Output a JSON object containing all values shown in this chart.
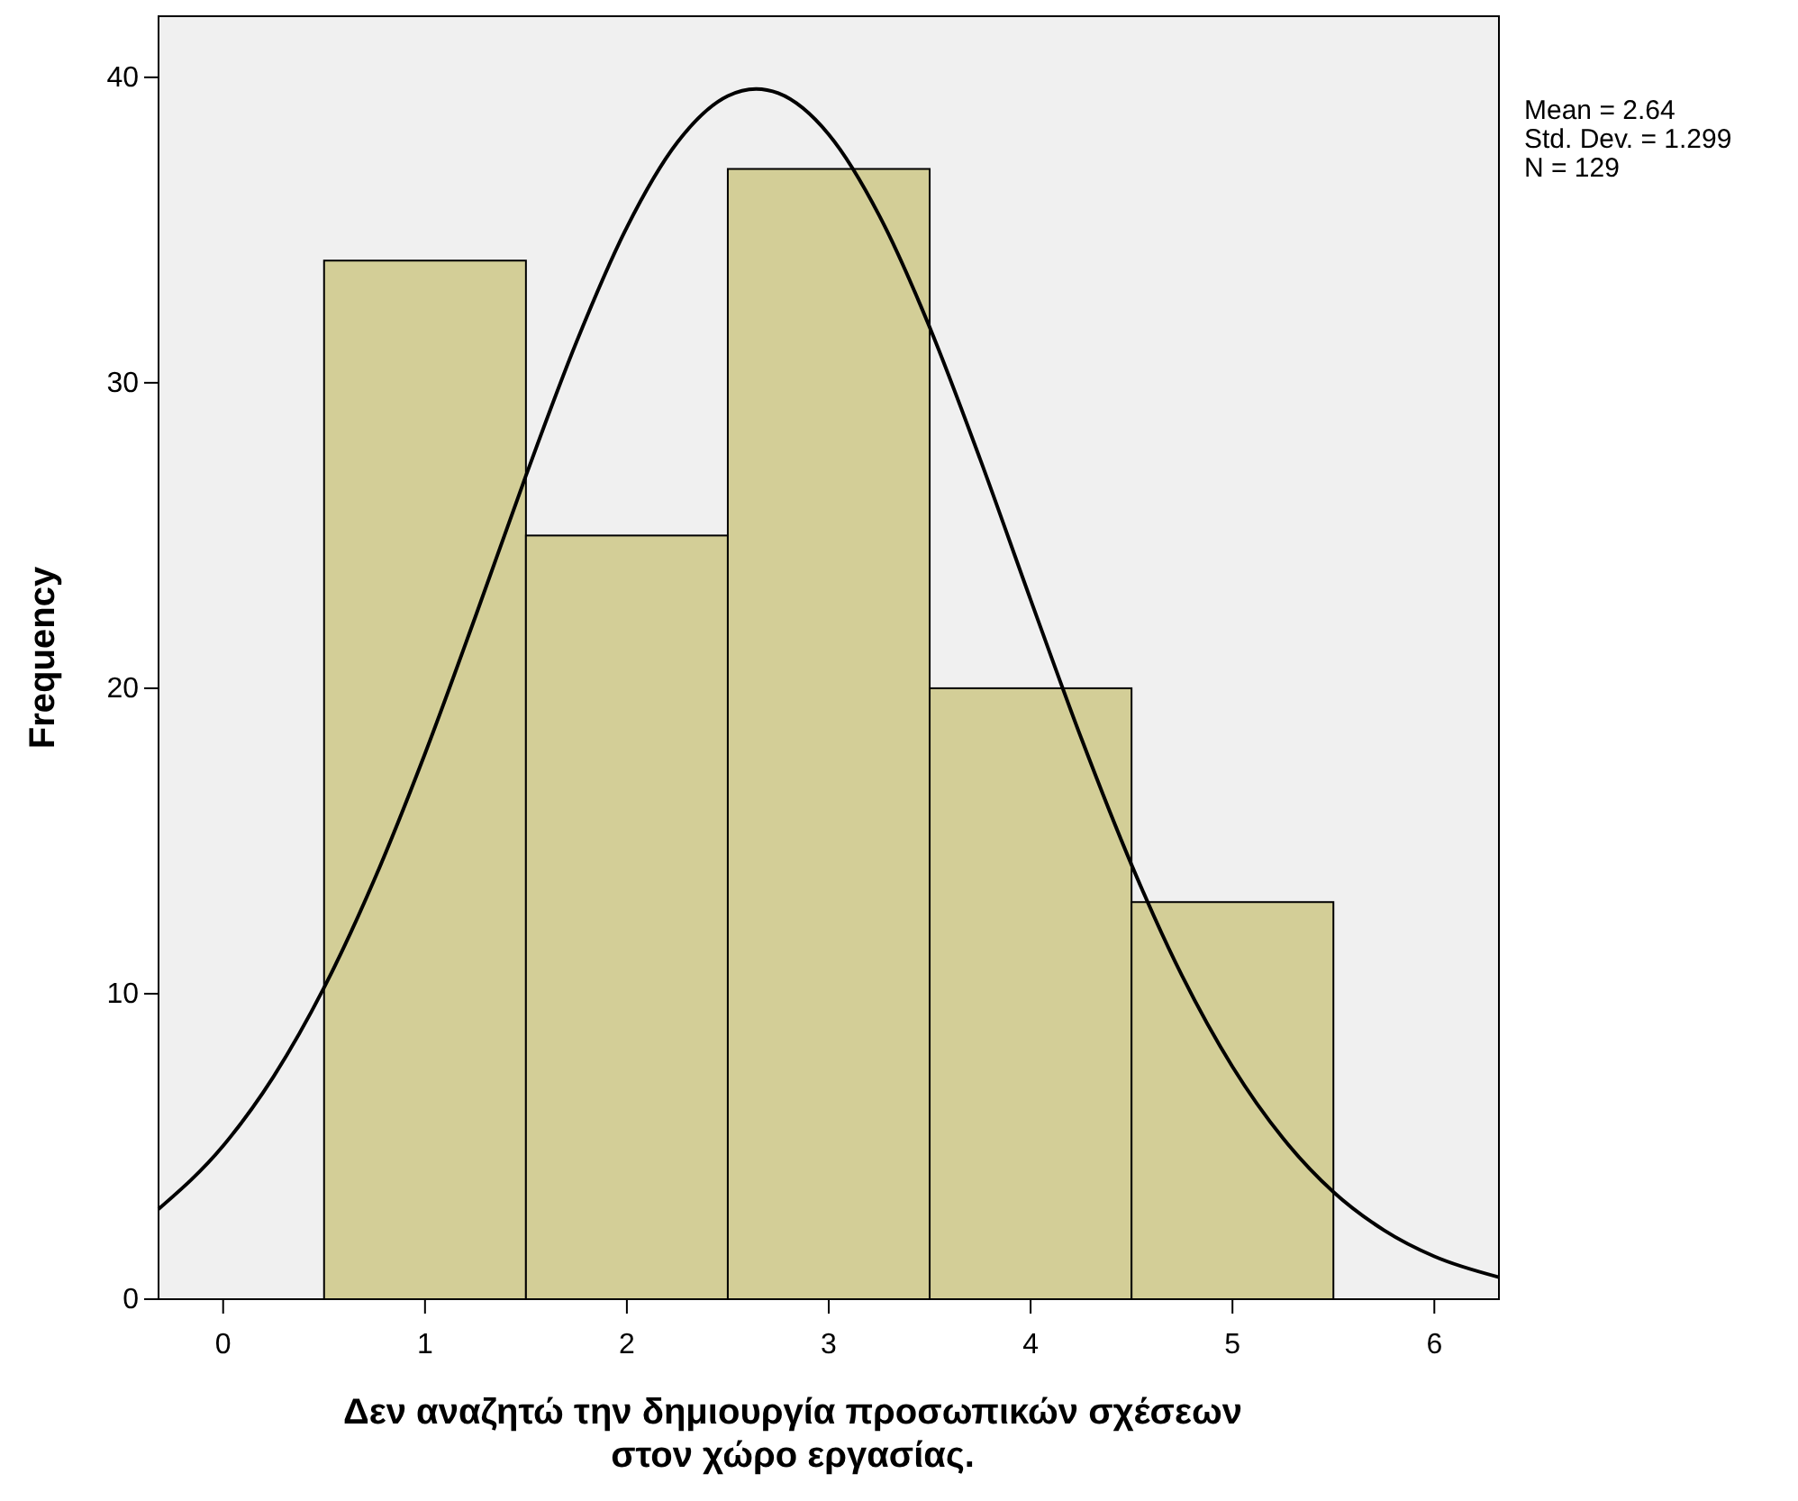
{
  "chart_data": {
    "type": "histogram",
    "xlabel": "Δεν αναζητώ την δημιουργία προσωπικών σχέσεων\nστον χώρο εργασίας.",
    "ylabel": "Frequency",
    "annotations": [
      "Mean = 2.64\nStd. Dev. = 1.299\nN = 129"
    ],
    "color": "#d3ce97",
    "bins": [
      0.5,
      1.5,
      2.5,
      3.5,
      4.5,
      5.5
    ],
    "values": [
      34,
      25,
      37,
      20,
      13
    ],
    "series": [
      {
        "type": "line",
        "color": "#000000",
        "x": [
          -0.32,
          0,
          0.25,
          0.5,
          0.75,
          1,
          1.25,
          1.5,
          1.75,
          2,
          2.25,
          2.5,
          2.64,
          2.75,
          3,
          3.25,
          3.5,
          3.75,
          4,
          4.25,
          4.5,
          4.75,
          5,
          5.25,
          5.5,
          5.75,
          6,
          6.32
        ],
        "values": [
          2.95,
          5.02,
          7.29,
          10.2,
          13.75,
          17.86,
          22.35,
          26.96,
          31.33,
          35.09,
          37.87,
          39.39,
          39.62,
          39.48,
          38.13,
          35.48,
          31.82,
          27.5,
          22.9,
          18.38,
          14.22,
          10.59,
          7.61,
          5.27,
          3.51,
          2.26,
          1.4,
          0.72
        ]
      }
    ],
    "xlim": [
      -0.32,
      6.32
    ],
    "xticks": [
      0,
      1,
      2,
      3,
      4,
      5,
      6
    ],
    "ylim": [
      0,
      42
    ],
    "yticks": [
      0,
      10,
      20,
      30,
      40
    ],
    "grid": false,
    "marker": "none",
    "line_style": "solid"
  }
}
